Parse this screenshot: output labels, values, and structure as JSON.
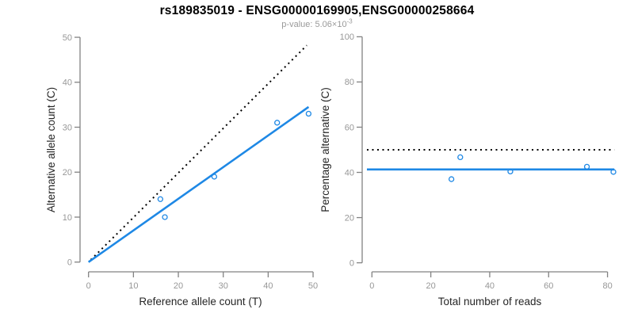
{
  "header": {
    "title": "rs189835019 - ENSG00000169905,ENSG00000258664",
    "pvalue_base": "p-value: 5.06×10",
    "pvalue_exp": "-3"
  },
  "colors": {
    "accent_blue": "#1E88E5",
    "dotted_line": "#000000",
    "axis_line": "#828282",
    "tick_label": "#979797",
    "axis_title": "#262626",
    "subtitle": "#9a9a9a"
  },
  "chart_data": [
    {
      "type": "scatter",
      "name": "allele-counts",
      "xlabel": "Reference allele count (T)",
      "ylabel": "Alternative allele count (C)",
      "xlim": [
        0,
        50
      ],
      "ylim": [
        0,
        50
      ],
      "xticks": [
        0,
        10,
        20,
        30,
        40,
        50
      ],
      "yticks": [
        0,
        10,
        20,
        30,
        40,
        50
      ],
      "grid": false,
      "points": [
        [
          16,
          14
        ],
        [
          17,
          10
        ],
        [
          28,
          19
        ],
        [
          42,
          31
        ],
        [
          49,
          33
        ]
      ],
      "lines": [
        {
          "name": "identity-line",
          "style": "dotted",
          "color": "#000000",
          "from": [
            0.5,
            0.5
          ],
          "to": [
            48.6,
            48.2
          ]
        },
        {
          "name": "fit-line",
          "style": "solid",
          "color": "#1E88E5",
          "from": [
            0,
            0
          ],
          "to": [
            49,
            34.5
          ]
        }
      ]
    },
    {
      "type": "scatter",
      "name": "percentage-vs-reads",
      "xlabel": "Total number of reads",
      "ylabel": "Percentage alternative (C)",
      "xlim": [
        0,
        80
      ],
      "ylim": [
        0,
        100
      ],
      "xticks": [
        0,
        20,
        40,
        60,
        80
      ],
      "yticks": [
        0,
        20,
        40,
        60,
        80,
        100
      ],
      "grid": false,
      "points": [
        [
          27,
          37.0
        ],
        [
          30,
          46.7
        ],
        [
          47,
          40.4
        ],
        [
          73,
          42.5
        ],
        [
          82,
          40.2
        ]
      ],
      "lines": [
        {
          "name": "expected-50pct-line",
          "style": "dotted",
          "color": "#000000",
          "from": [
            -1.7,
            50
          ],
          "to": [
            82.3,
            50
          ]
        },
        {
          "name": "fit-line",
          "style": "solid",
          "color": "#1E88E5",
          "from": [
            -1.7,
            41.3
          ],
          "to": [
            82.3,
            41.3
          ]
        }
      ]
    }
  ]
}
